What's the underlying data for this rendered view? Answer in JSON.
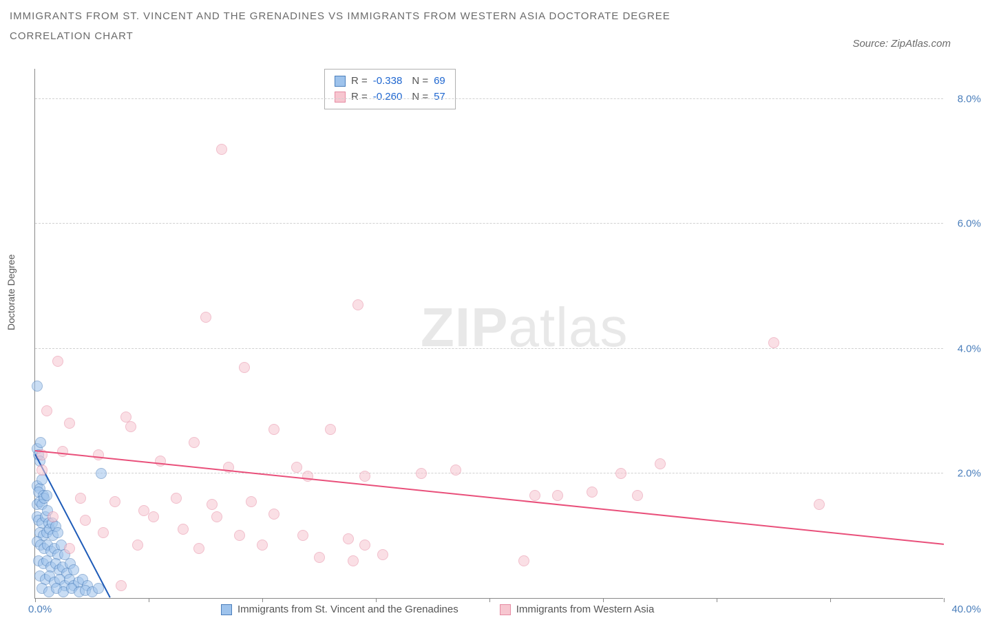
{
  "title": "IMMIGRANTS FROM ST. VINCENT AND THE GRENADINES VS IMMIGRANTS FROM WESTERN ASIA DOCTORATE DEGREE CORRELATION CHART",
  "source": "Source: ZipAtlas.com",
  "ylabel": "Doctorate Degree",
  "watermark_bold": "ZIP",
  "watermark_light": "atlas",
  "chart": {
    "type": "scatter",
    "xlim": [
      0,
      40
    ],
    "ylim": [
      0,
      8.5
    ],
    "x_ticks": [
      0,
      5,
      10,
      15,
      20,
      25,
      30,
      35,
      40
    ],
    "y_ticks": [
      2,
      4,
      6,
      8
    ],
    "y_tick_labels": [
      "2.0%",
      "4.0%",
      "6.0%",
      "8.0%"
    ],
    "x_label_min": "0.0%",
    "x_label_max": "40.0%",
    "background_color": "#ffffff",
    "grid_color": "#d0d0d0",
    "axis_color": "#888888",
    "tick_label_color": "#4a7ebb",
    "point_radius": 8,
    "point_opacity": 0.55,
    "series": [
      {
        "name": "Immigrants from St. Vincent and the Grenadines",
        "fill_color": "#9ec3ec",
        "stroke_color": "#4a7ebb",
        "R": "-0.338",
        "N": "69",
        "trend": {
          "x1": 0,
          "y1": 2.3,
          "x2": 3.3,
          "y2": 0,
          "color": "#1e5bb8",
          "width": 2
        },
        "points": [
          [
            0.1,
            3.4
          ],
          [
            0.1,
            2.4
          ],
          [
            0.15,
            2.3
          ],
          [
            0.2,
            2.2
          ],
          [
            0.25,
            2.5
          ],
          [
            0.1,
            1.8
          ],
          [
            0.2,
            1.75
          ],
          [
            0.15,
            1.7
          ],
          [
            0.3,
            1.9
          ],
          [
            0.35,
            1.65
          ],
          [
            0.1,
            1.5
          ],
          [
            0.2,
            1.55
          ],
          [
            0.3,
            1.5
          ],
          [
            0.4,
            1.6
          ],
          [
            0.5,
            1.65
          ],
          [
            0.1,
            1.3
          ],
          [
            0.15,
            1.25
          ],
          [
            0.3,
            1.2
          ],
          [
            0.45,
            1.3
          ],
          [
            0.55,
            1.4
          ],
          [
            0.6,
            1.2
          ],
          [
            0.2,
            1.05
          ],
          [
            0.35,
            1.0
          ],
          [
            0.5,
            1.05
          ],
          [
            0.65,
            1.1
          ],
          [
            0.75,
            1.2
          ],
          [
            0.8,
            1.0
          ],
          [
            0.9,
            1.15
          ],
          [
            1.0,
            1.05
          ],
          [
            0.1,
            0.9
          ],
          [
            0.25,
            0.85
          ],
          [
            0.4,
            0.8
          ],
          [
            0.55,
            0.85
          ],
          [
            0.7,
            0.75
          ],
          [
            0.85,
            0.8
          ],
          [
            1.0,
            0.7
          ],
          [
            1.15,
            0.85
          ],
          [
            1.3,
            0.7
          ],
          [
            0.15,
            0.6
          ],
          [
            0.35,
            0.55
          ],
          [
            0.5,
            0.6
          ],
          [
            0.7,
            0.5
          ],
          [
            0.9,
            0.55
          ],
          [
            1.05,
            0.45
          ],
          [
            1.2,
            0.5
          ],
          [
            1.4,
            0.4
          ],
          [
            1.55,
            0.55
          ],
          [
            1.7,
            0.45
          ],
          [
            0.2,
            0.35
          ],
          [
            0.45,
            0.3
          ],
          [
            0.65,
            0.35
          ],
          [
            0.85,
            0.25
          ],
          [
            1.1,
            0.3
          ],
          [
            1.3,
            0.2
          ],
          [
            1.5,
            0.3
          ],
          [
            1.7,
            0.2
          ],
          [
            1.9,
            0.25
          ],
          [
            2.1,
            0.3
          ],
          [
            2.3,
            0.2
          ],
          [
            0.3,
            0.15
          ],
          [
            0.6,
            0.1
          ],
          [
            0.95,
            0.15
          ],
          [
            1.25,
            0.1
          ],
          [
            1.6,
            0.15
          ],
          [
            1.95,
            0.1
          ],
          [
            2.2,
            0.12
          ],
          [
            2.5,
            0.1
          ],
          [
            2.8,
            0.15
          ],
          [
            2.9,
            2.0
          ]
        ]
      },
      {
        "name": "Immigrants from Western Asia",
        "fill_color": "#f7c6d0",
        "stroke_color": "#e68aa2",
        "R": "-0.260",
        "N": "57",
        "trend": {
          "x1": 0,
          "y1": 2.35,
          "x2": 40,
          "y2": 0.85,
          "color": "#e94f7a",
          "width": 2
        },
        "points": [
          [
            8.2,
            7.2
          ],
          [
            1.0,
            3.8
          ],
          [
            7.5,
            4.5
          ],
          [
            9.2,
            3.7
          ],
          [
            14.2,
            4.7
          ],
          [
            32.5,
            4.1
          ],
          [
            0.3,
            2.3
          ],
          [
            0.5,
            3.0
          ],
          [
            1.5,
            2.8
          ],
          [
            4.0,
            2.9
          ],
          [
            4.2,
            2.75
          ],
          [
            7.0,
            2.5
          ],
          [
            10.5,
            2.7
          ],
          [
            13.0,
            2.7
          ],
          [
            0.3,
            2.05
          ],
          [
            1.2,
            2.35
          ],
          [
            2.8,
            2.3
          ],
          [
            5.5,
            2.2
          ],
          [
            8.5,
            2.1
          ],
          [
            11.5,
            2.1
          ],
          [
            12.0,
            1.95
          ],
          [
            14.5,
            1.95
          ],
          [
            17.0,
            2.0
          ],
          [
            18.5,
            2.05
          ],
          [
            25.8,
            2.0
          ],
          [
            27.5,
            2.15
          ],
          [
            34.5,
            1.5
          ],
          [
            22.0,
            1.65
          ],
          [
            23.0,
            1.65
          ],
          [
            24.5,
            1.7
          ],
          [
            26.5,
            1.65
          ],
          [
            2.0,
            1.6
          ],
          [
            3.5,
            1.55
          ],
          [
            4.8,
            1.4
          ],
          [
            6.2,
            1.6
          ],
          [
            7.8,
            1.5
          ],
          [
            9.5,
            1.55
          ],
          [
            0.8,
            1.3
          ],
          [
            2.2,
            1.25
          ],
          [
            5.2,
            1.3
          ],
          [
            8.0,
            1.3
          ],
          [
            10.5,
            1.35
          ],
          [
            3.0,
            1.05
          ],
          [
            6.5,
            1.1
          ],
          [
            9.0,
            1.0
          ],
          [
            11.8,
            1.0
          ],
          [
            13.8,
            0.95
          ],
          [
            14.5,
            0.85
          ],
          [
            1.5,
            0.8
          ],
          [
            4.5,
            0.85
          ],
          [
            7.2,
            0.8
          ],
          [
            10.0,
            0.85
          ],
          [
            12.5,
            0.65
          ],
          [
            14.0,
            0.6
          ],
          [
            15.3,
            0.7
          ],
          [
            21.5,
            0.6
          ],
          [
            3.8,
            0.2
          ]
        ]
      }
    ]
  },
  "legend": {
    "r_label": "R =",
    "n_label": "N ="
  }
}
